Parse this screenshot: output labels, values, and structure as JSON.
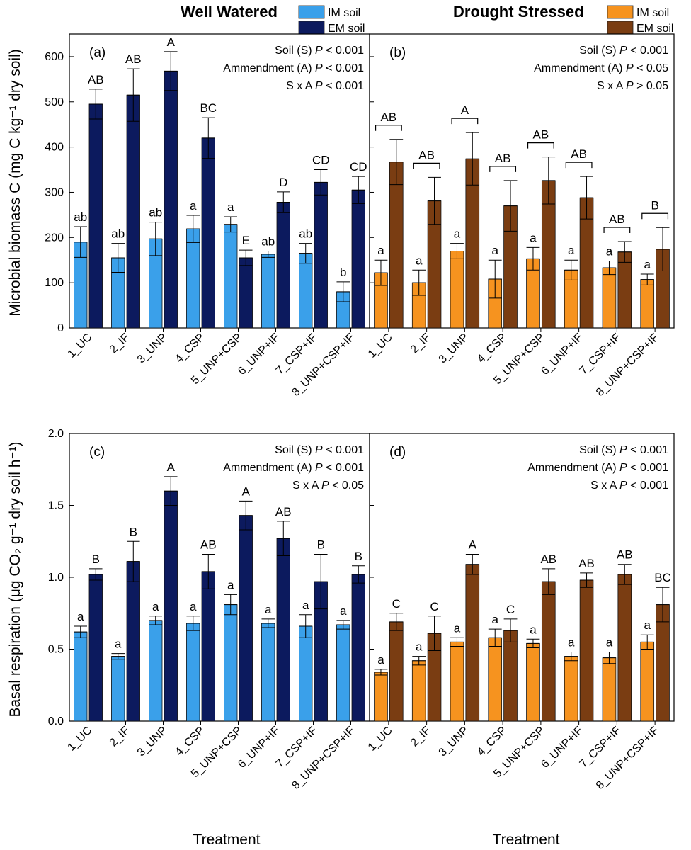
{
  "figure": {
    "x_axis_title": "Treatment",
    "conditions": [
      {
        "title": "Well Watered",
        "legend": [
          {
            "label": "IM soil",
            "color": "#3aa0ea"
          },
          {
            "label": "EM soil",
            "color": "#0c1a5e"
          }
        ]
      },
      {
        "title": "Drought Stressed",
        "legend": [
          {
            "label": "IM soil",
            "color": "#f6931f"
          },
          {
            "label": "EM soil",
            "color": "#7a3d12"
          }
        ]
      }
    ]
  },
  "chart_data": [
    {
      "type": "bar",
      "panel_label": "(a)",
      "ylabel": "Microbial biomass C (mg C kg⁻¹ dry soil)",
      "ylim": [
        0,
        650
      ],
      "yticks": [
        0,
        100,
        200,
        300,
        400,
        500,
        600
      ],
      "categories": [
        "1_UC",
        "2_IF",
        "3_UNP",
        "4_CSP",
        "5_UNP+CSP",
        "6_UNP+IF",
        "7_CSP+IF",
        "8_UNP+CSP+IF"
      ],
      "series": [
        {
          "name": "IM soil",
          "color": "#3aa0ea",
          "values": [
            190,
            155,
            197,
            219,
            229,
            163,
            165,
            80
          ],
          "errors": [
            34,
            32,
            37,
            30,
            17,
            7,
            22,
            22
          ],
          "letters": [
            "ab",
            "ab",
            "ab",
            "a",
            "a",
            "ab",
            "ab",
            "b"
          ]
        },
        {
          "name": "EM soil",
          "color": "#0c1a5e",
          "values": [
            495,
            515,
            568,
            420,
            155,
            278,
            322,
            305
          ],
          "errors": [
            33,
            58,
            43,
            45,
            17,
            23,
            28,
            30
          ],
          "letters": [
            "AB",
            "AB",
            "A",
            "BC",
            "E",
            "D",
            "CD",
            "CD"
          ]
        }
      ],
      "stats": [
        {
          "label": "Soil (S) ",
          "p": "P",
          "value": " < 0.001"
        },
        {
          "label": "Ammendment (A) ",
          "p": "P",
          "value": " < 0.001"
        },
        {
          "label": "S x A ",
          "p": "P",
          "value": " < 0.001"
        }
      ]
    },
    {
      "type": "bar",
      "panel_label": "(b)",
      "ylabel": "",
      "ylim": [
        0,
        650
      ],
      "yticks": [
        0,
        100,
        200,
        300,
        400,
        500,
        600
      ],
      "categories": [
        "1_UC",
        "2_IF",
        "3_UNP",
        "4_CSP",
        "5_UNP+CSP",
        "6_UNP+IF",
        "7_CSP+IF",
        "8_UNP+CSP+IF"
      ],
      "series": [
        {
          "name": "IM soil",
          "color": "#f6931f",
          "values": [
            122,
            100,
            170,
            108,
            153,
            128,
            133,
            107
          ],
          "errors": [
            28,
            28,
            17,
            42,
            25,
            22,
            15,
            12
          ],
          "letters": [
            "a",
            "a",
            "a",
            "a",
            "a",
            "a",
            "a",
            "a"
          ]
        },
        {
          "name": "EM soil",
          "color": "#7a3d12",
          "values": [
            367,
            281,
            374,
            270,
            326,
            288,
            168,
            174
          ],
          "errors": [
            50,
            52,
            58,
            56,
            52,
            47,
            23,
            48
          ],
          "letters": [
            "",
            "",
            "",
            "",
            "",
            "",
            "",
            ""
          ]
        }
      ],
      "pair_letters": [
        "AB",
        "AB",
        "A",
        "AB",
        "AB",
        "AB",
        "AB",
        "B"
      ],
      "stats": [
        {
          "label": "Soil (S) ",
          "p": "P",
          "value": " < 0.001"
        },
        {
          "label": "Ammendment (A) ",
          "p": "P",
          "value": " < 0.05"
        },
        {
          "label": "S x A ",
          "p": "P",
          "value": " > 0.05"
        }
      ]
    },
    {
      "type": "bar",
      "panel_label": "(c)",
      "ylabel": "Basal respiration (μg CO₂ g⁻¹ dry soil h⁻¹)",
      "ylim": [
        0,
        2.0
      ],
      "yticks": [
        0.0,
        0.5,
        1.0,
        1.5,
        2.0
      ],
      "categories": [
        "1_UC",
        "2_IF",
        "3_UNP",
        "4_CSP",
        "5_UNP+CSP",
        "6_UNP+IF",
        "7_CSP+IF",
        "8_UNP+CSP+IF"
      ],
      "series": [
        {
          "name": "IM soil",
          "color": "#3aa0ea",
          "values": [
            0.62,
            0.45,
            0.7,
            0.68,
            0.81,
            0.68,
            0.66,
            0.67
          ],
          "errors": [
            0.04,
            0.02,
            0.03,
            0.05,
            0.07,
            0.03,
            0.08,
            0.03
          ],
          "letters": [
            "a",
            "a",
            "a",
            "a",
            "a",
            "a",
            "a",
            "a"
          ]
        },
        {
          "name": "EM soil",
          "color": "#0c1a5e",
          "values": [
            1.02,
            1.11,
            1.6,
            1.04,
            1.43,
            1.27,
            0.97,
            1.02
          ],
          "errors": [
            0.04,
            0.14,
            0.1,
            0.12,
            0.1,
            0.12,
            0.19,
            0.06
          ],
          "letters": [
            "B",
            "B",
            "A",
            "AB",
            "A",
            "AB",
            "B",
            "B"
          ]
        }
      ],
      "stats": [
        {
          "label": "Soil (S) ",
          "p": "P",
          "value": " < 0.001"
        },
        {
          "label": "Ammendment (A) ",
          "p": "P",
          "value": " < 0.001"
        },
        {
          "label": "S x A ",
          "p": "P",
          "value": " < 0.05"
        }
      ]
    },
    {
      "type": "bar",
      "panel_label": "(d)",
      "ylabel": "",
      "ylim": [
        0,
        2.0
      ],
      "yticks": [
        0.0,
        0.5,
        1.0,
        1.5,
        2.0
      ],
      "categories": [
        "1_UC",
        "2_IF",
        "3_UNP",
        "4_CSP",
        "5_UNP+CSP",
        "6_UNP+IF",
        "7_CSP+IF",
        "8_UNP+CSP+IF"
      ],
      "series": [
        {
          "name": "IM soil",
          "color": "#f6931f",
          "values": [
            0.34,
            0.42,
            0.55,
            0.58,
            0.54,
            0.45,
            0.44,
            0.55
          ],
          "errors": [
            0.02,
            0.03,
            0.03,
            0.06,
            0.03,
            0.03,
            0.04,
            0.05
          ],
          "letters": [
            "a",
            "a",
            "a",
            "a",
            "a",
            "a",
            "a",
            "a"
          ]
        },
        {
          "name": "EM soil",
          "color": "#7a3d12",
          "values": [
            0.69,
            0.61,
            1.09,
            0.63,
            0.97,
            0.98,
            1.02,
            0.81
          ],
          "errors": [
            0.06,
            0.12,
            0.07,
            0.08,
            0.09,
            0.05,
            0.07,
            0.12
          ],
          "letters": [
            "C",
            "C",
            "A",
            "C",
            "AB",
            "AB",
            "AB",
            "BC"
          ]
        }
      ],
      "stats": [
        {
          "label": "Soil (S) ",
          "p": "P",
          "value": " < 0.001"
        },
        {
          "label": "Ammendment (A) ",
          "p": "P",
          "value": " < 0.001"
        },
        {
          "label": "S x A ",
          "p": "P",
          "value": " < 0.001"
        }
      ]
    }
  ]
}
